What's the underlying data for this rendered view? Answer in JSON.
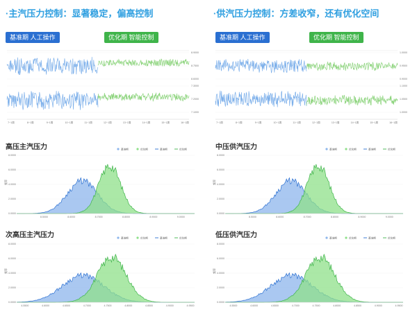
{
  "colors": {
    "title": "#2f9fe0",
    "tag_blue": "#2a6fd1",
    "tag_green": "#3fb44a",
    "series_blue": "#7aaeea",
    "series_green": "#8ad37a",
    "area_blue": "#8db6ec",
    "area_green": "#8fe08a"
  },
  "left": {
    "title": "·主汽压力控制：显著稳定，偏高控制",
    "tag_base": "基准期  人工操作",
    "tag_opt": "优化期  智能控制"
  },
  "right": {
    "title": "·供汽压力控制：方差收窄，还有优化空间",
    "tag_base": "基准期  人工操作",
    "tag_opt": "优化期  智能控制"
  },
  "chart_data": [
    {
      "id": "ts_left",
      "type": "line",
      "x_ticks": [
        "7~1周",
        "8~1周",
        "9~1周",
        "10~1周",
        "11~1周",
        "12~1周",
        "13~1周",
        "14~1周",
        "15~1周",
        "16~1周"
      ],
      "y_ticks_top": [
        "8.9000",
        "8.7500",
        "8.6000"
      ],
      "y_ticks_bottom": [
        "7.3000",
        "7.2000",
        "7.1000"
      ],
      "series": [
        {
          "segment": "top",
          "period": "base",
          "mean": 0.52,
          "amp": 0.28,
          "seed": 3
        },
        {
          "segment": "top",
          "period": "opt",
          "mean": 0.38,
          "amp": 0.12,
          "seed": 5
        },
        {
          "segment": "bottom",
          "period": "base",
          "mean": 0.55,
          "amp": 0.3,
          "seed": 7
        },
        {
          "segment": "bottom",
          "period": "opt",
          "mean": 0.42,
          "amp": 0.13,
          "seed": 11
        }
      ],
      "split_fraction": 0.5
    },
    {
      "id": "ts_right",
      "type": "line",
      "x_ticks": [
        "7~1周",
        "8~1周",
        "9~1周",
        "10~1周",
        "11~1周",
        "12~1周",
        "13~1周",
        "14~1周",
        "15~1周",
        "16~1周"
      ],
      "y_ticks_top": [
        "1.0000",
        "0.9500",
        "0.9000"
      ],
      "y_ticks_bottom": [
        "1.1000",
        "1.0500",
        "1.0000"
      ],
      "series": [
        {
          "segment": "top",
          "period": "base",
          "mean": 0.5,
          "amp": 0.22,
          "seed": 13
        },
        {
          "segment": "top",
          "period": "opt",
          "mean": 0.52,
          "amp": 0.14,
          "seed": 17
        },
        {
          "segment": "bottom",
          "period": "base",
          "mean": 0.5,
          "amp": 0.26,
          "seed": 19
        },
        {
          "segment": "bottom",
          "period": "opt",
          "mean": 0.55,
          "amp": 0.17,
          "seed": 23
        }
      ],
      "split_fraction": 0.5
    },
    {
      "id": "dist_1",
      "type": "area",
      "title": "高压主汽压力",
      "legend": [
        "基准期",
        "优化期",
        "基准期",
        "优化期"
      ],
      "ylabel": "频率",
      "y_ticks": [
        "8.0000",
        "6.0000",
        "4.0000",
        "2.0000",
        "0.0000"
      ],
      "ylim": [
        0,
        8
      ],
      "x_ticks": [
        "8.5000",
        "8.6000",
        "8.7000",
        "8.8000",
        "8.9000",
        "9.0000"
      ],
      "xlim": [
        8.4,
        9.05
      ],
      "base": {
        "mu": 8.64,
        "sigma": 0.055,
        "peak": 4.5
      },
      "opt": {
        "mu": 8.74,
        "sigma": 0.04,
        "peak": 6.6
      }
    },
    {
      "id": "dist_2",
      "type": "area",
      "title": "中压供汽压力",
      "legend": [
        "基准期",
        "优化期",
        "基准期",
        "优化期"
      ],
      "ylabel": "频率",
      "y_ticks": [
        "8.0000",
        "6.0000",
        "4.0000",
        "2.0000",
        "0.0000"
      ],
      "ylim": [
        0,
        8
      ],
      "x_ticks": [
        "8.5000",
        "8.6000",
        "8.7000",
        "8.8000",
        "8.9000",
        "9.0000"
      ],
      "xlim": [
        8.4,
        9.05
      ],
      "base": {
        "mu": 8.64,
        "sigma": 0.055,
        "peak": 4.5
      },
      "opt": {
        "mu": 8.74,
        "sigma": 0.04,
        "peak": 6.6
      }
    },
    {
      "id": "dist_3",
      "type": "area",
      "title": "次高压主汽压力",
      "legend": [
        "基准期",
        "优化期",
        "基准期",
        "优化期"
      ],
      "ylabel": "频率",
      "y_ticks": [
        "8.0000",
        "6.0000",
        "4.0000",
        "2.0000",
        "0.0000"
      ],
      "ylim": [
        0,
        8
      ],
      "x_ticks": [
        "4.5500",
        "4.6000",
        "4.6500",
        "4.7000",
        "4.7500",
        "4.8000",
        "4.8500",
        "4.9000",
        "4.9500"
      ],
      "xlim": [
        4.53,
        4.96
      ],
      "base": {
        "mu": 4.69,
        "sigma": 0.05,
        "peak": 3.7
      },
      "opt": {
        "mu": 4.76,
        "sigma": 0.035,
        "peak": 6.2
      }
    },
    {
      "id": "dist_4",
      "type": "area",
      "title": "低压供汽压力",
      "legend": [
        "基准期",
        "优化期",
        "基准期",
        "优化期"
      ],
      "ylabel": "频率",
      "y_ticks": [
        "8.0000",
        "6.0000",
        "4.0000",
        "2.0000",
        "0.0000"
      ],
      "ylim": [
        0,
        8
      ],
      "x_ticks": [
        "4.5500",
        "4.6000",
        "4.6500",
        "4.7000",
        "4.7500",
        "4.8000",
        "4.8500",
        "4.9000",
        "4.9500"
      ],
      "xlim": [
        4.53,
        4.96
      ],
      "base": {
        "mu": 4.69,
        "sigma": 0.05,
        "peak": 3.7
      },
      "opt": {
        "mu": 4.76,
        "sigma": 0.035,
        "peak": 6.2
      }
    }
  ]
}
